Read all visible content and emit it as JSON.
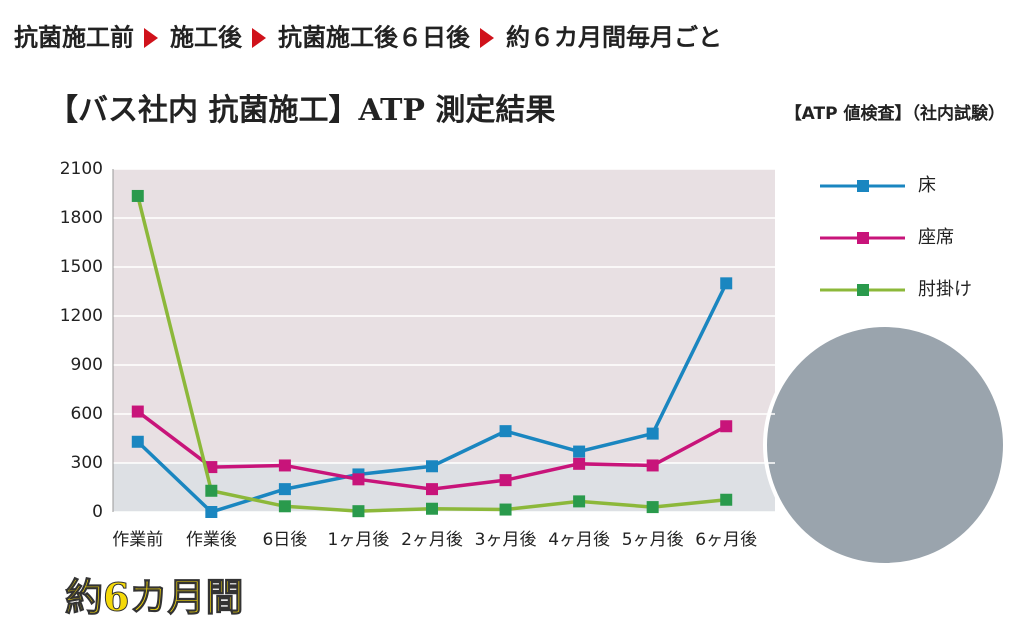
{
  "breadcrumb": [
    "抗菌施工前",
    "施工後",
    "抗菌施工後６日後",
    "約６カ月間毎月ごと"
  ],
  "chart_data": {
    "type": "line",
    "title": "【バス社内 抗菌施工】ATP 測定結果",
    "subtitle": "【ATP 値検査】（社内試験）",
    "categories": [
      "作業前",
      "作業後",
      "6日後",
      "1ヶ月後",
      "2ヶ月後",
      "3ヶ月後",
      "4ヶ月後",
      "5ヶ月後",
      "6ヶ月後"
    ],
    "series": [
      {
        "name": "床",
        "color": "#1a86c0",
        "values": [
          430,
          0,
          140,
          230,
          280,
          495,
          370,
          480,
          1400
        ]
      },
      {
        "name": "座席",
        "color": "#c8147a",
        "values": [
          615,
          275,
          285,
          200,
          140,
          195,
          295,
          285,
          525
        ]
      },
      {
        "name": "肘掛け",
        "color": "#8cb83a",
        "values": [
          1935,
          130,
          35,
          5,
          20,
          15,
          65,
          30,
          75
        ]
      }
    ],
    "ylim": [
      0,
      2100
    ],
    "yticks": [
      0,
      300,
      600,
      900,
      1200,
      1500,
      1800,
      2100
    ],
    "grid": true,
    "legend": "right"
  },
  "footer": "約6カ月間"
}
